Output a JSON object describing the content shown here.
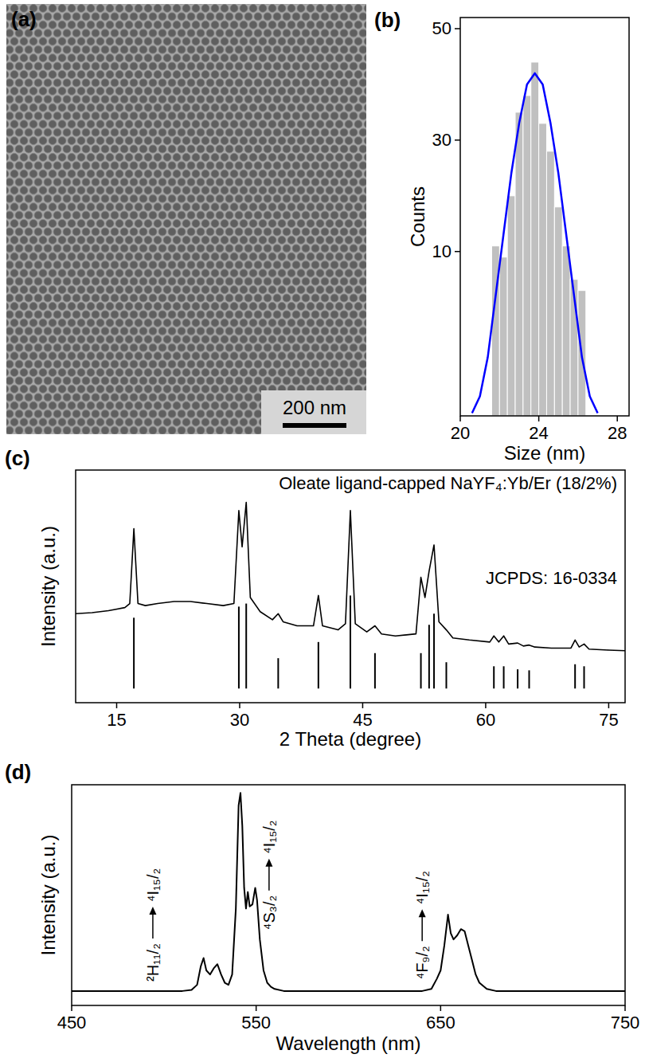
{
  "image": {
    "panel_label": "(a)",
    "scale_bar": "200 nm"
  },
  "chart_data": [
    {
      "panel_label": "(b)",
      "type": "histogram",
      "x_label": "Size (nm)",
      "y_label": "Counts",
      "bins": [
        21.6,
        22.0,
        22.4,
        22.8,
        23.2,
        23.6,
        24.0,
        24.4,
        24.8,
        25.2,
        25.6,
        26.0,
        26.4
      ],
      "values": [
        11,
        9,
        20,
        35,
        38,
        44,
        33,
        28,
        18,
        11,
        5,
        3
      ],
      "color": "#c0c0c0",
      "xlim": [
        20,
        28.6
      ],
      "xticks": [
        20,
        24,
        28
      ],
      "ylim": [
        -19.5,
        52
      ],
      "yticks": [
        10,
        30,
        50
      ],
      "series": [
        {
          "type": "line",
          "color": "#0000ff",
          "x": [
            20.6,
            21.0,
            21.4,
            21.8,
            22.2,
            22.6,
            23.0,
            23.4,
            23.8,
            24.2,
            24.6,
            25.0,
            25.4,
            25.8,
            26.2,
            26.6,
            27.0
          ],
          "values": [
            -19,
            -16,
            -9,
            2,
            13,
            24,
            33,
            40,
            42,
            40,
            33,
            24,
            13,
            2,
            -9,
            -16,
            -19
          ]
        }
      ]
    },
    {
      "panel_label": "(c)",
      "type": "line",
      "x_label": "2 Theta (degree)",
      "y_label": "Intensity (a.u.)",
      "xlim": [
        10,
        77
      ],
      "xticks": [
        15,
        30,
        45,
        60,
        75
      ],
      "ylim": [
        -7,
        108
      ],
      "tick_labels": "x",
      "series": [
        {
          "name": "Oleate ligand-capped NaYF₄:Yb/Er (18/2%)",
          "type": "line",
          "color": "#000000",
          "x": [
            10,
            12,
            14,
            16,
            16.6,
            17.1,
            17.6,
            18.5,
            20,
            22,
            24,
            26,
            28,
            29.3,
            29.9,
            30.3,
            30.8,
            31.3,
            32.5,
            34,
            34.7,
            35.3,
            37,
            39,
            39.6,
            40.1,
            42,
            42.9,
            43.5,
            44.1,
            45.5,
            46.5,
            47.3,
            49,
            51.5,
            52.1,
            52.6,
            53.1,
            53.7,
            54.3,
            55.2,
            56,
            58,
            60.5,
            61,
            61.6,
            62.2,
            62.8,
            63.9,
            64.6,
            65.3,
            66,
            68,
            70.4,
            70.9,
            71.4,
            72,
            72.6,
            75,
            77
          ],
          "values": [
            37,
            37.5,
            38.5,
            40,
            42,
            79,
            42,
            41,
            42,
            43,
            43,
            42,
            41,
            42,
            88,
            70,
            92,
            45,
            38,
            34,
            37,
            33,
            31,
            31,
            46,
            31,
            29,
            32,
            88,
            32,
            28,
            31,
            27,
            26,
            27,
            55,
            45,
            58,
            71,
            33,
            29,
            25,
            24,
            23,
            26,
            23,
            26,
            22,
            22.5,
            21,
            21.5,
            20.5,
            20,
            20,
            24,
            20.5,
            22,
            19.5,
            19,
            18.7
          ]
        },
        {
          "name": "JCPDS: 16-0334",
          "type": "bar",
          "color": "#000000",
          "x": [
            17.1,
            29.9,
            30.8,
            34.7,
            39.6,
            43.5,
            46.5,
            52.1,
            53.1,
            53.7,
            55.2,
            61.0,
            62.2,
            63.9,
            65.3,
            70.9,
            72.0
          ],
          "values": [
            35,
            40.5,
            42,
            15,
            23,
            46,
            17.5,
            17.5,
            31.5,
            37,
            13,
            11,
            11,
            9.5,
            9,
            12,
            11
          ]
        }
      ]
    },
    {
      "panel_label": "(d)",
      "type": "line",
      "x_label": "Wavelength (nm)",
      "y_label": "Intensity (a.u.)",
      "xlim": [
        450,
        750
      ],
      "xticks": [
        450,
        550,
        650,
        750
      ],
      "ylim": [
        -7,
        100
      ],
      "tick_labels": "x",
      "color": "#000000",
      "x": [
        450,
        510,
        515,
        518,
        520,
        521.5,
        523,
        525,
        527,
        529,
        531,
        533,
        535,
        537,
        539,
        540.5,
        541.5,
        542.5,
        543.5,
        544.5,
        545.5,
        546.5,
        548,
        549.5,
        550.5,
        552,
        554,
        556,
        558,
        560,
        565,
        640,
        645,
        648,
        650,
        652,
        654,
        655.5,
        657,
        659,
        661,
        663,
        665,
        667,
        669,
        671,
        675,
        680,
        750
      ],
      "values": [
        0,
        0,
        0.5,
        3,
        12,
        16,
        10,
        8,
        11,
        13,
        8,
        4,
        3,
        8,
        40,
        90,
        96,
        80,
        50,
        40,
        48,
        41,
        42,
        50,
        44,
        25,
        10,
        4,
        2,
        1,
        0,
        0,
        1,
        6,
        10,
        22,
        37,
        28,
        25,
        27,
        30,
        29,
        22,
        15,
        8,
        4,
        1,
        0,
        0
      ],
      "annotations": [
        {
          "from": "²H₁₁/₂",
          "to": "⁴I₁₅/₂",
          "x": 494
        },
        {
          "from": "⁴S₃/₂",
          "to": "⁴I₁₅/₂",
          "x": 557
        },
        {
          "from": "⁴F₉/₂",
          "to": "⁴I₁₅/₂",
          "x": 640
        }
      ]
    }
  ]
}
